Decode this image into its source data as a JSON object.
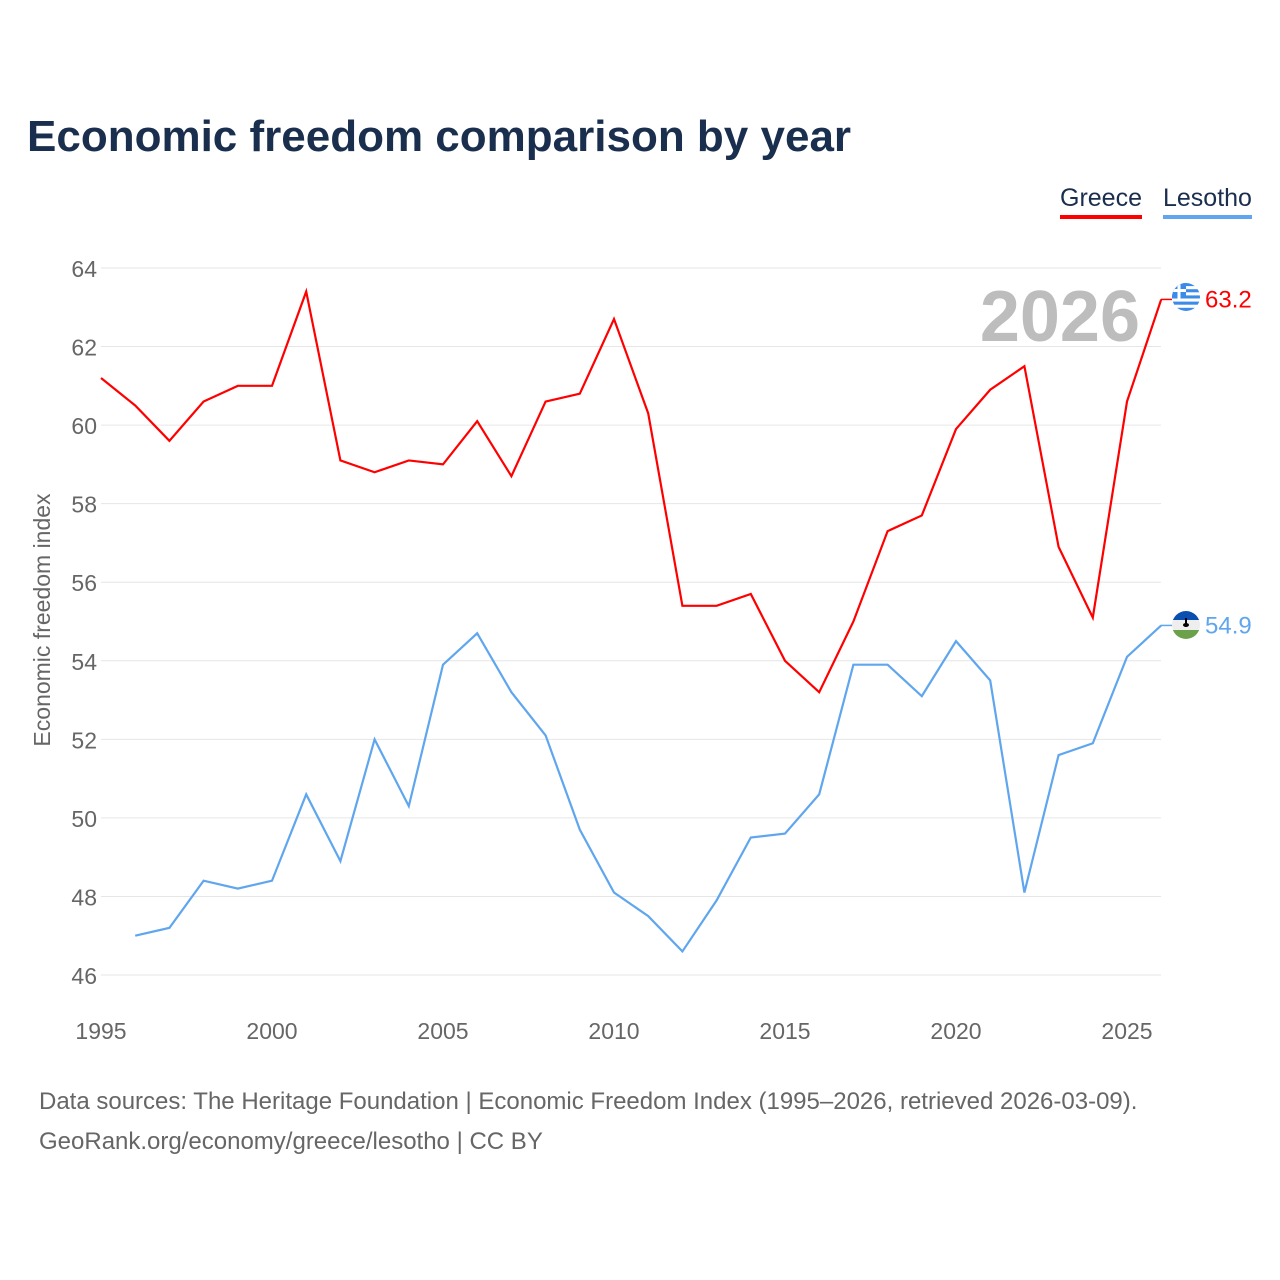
{
  "title": "Economic freedom comparison by year",
  "legend": [
    {
      "label": "Greece",
      "color": "#ff0000"
    },
    {
      "label": "Lesotho",
      "color": "#5fa6ee"
    }
  ],
  "year_label": "2026",
  "sources": [
    "Data sources: The Heritage Foundation | Economic Freedom Index (1995–2026, retrieved 2026-03-09).",
    "GeoRank.org/economy/greece/lesotho | CC BY"
  ],
  "chart_data": {
    "type": "line",
    "title": "Economic freedom comparison by year",
    "xlabel": "",
    "ylabel": "Economic freedom index",
    "xlim": [
      1995,
      2026
    ],
    "ylim": [
      46,
      64
    ],
    "xticks": [
      1995,
      2000,
      2005,
      2010,
      2015,
      2020,
      2025
    ],
    "yticks": [
      46,
      48,
      50,
      52,
      54,
      56,
      58,
      60,
      62,
      64
    ],
    "grid": true,
    "legend_position": "top-right",
    "series": [
      {
        "name": "Greece",
        "color": "#ff0000",
        "end_label": "63.2",
        "x": [
          1995,
          1996,
          1997,
          1998,
          1999,
          2000,
          2001,
          2002,
          2003,
          2004,
          2005,
          2006,
          2007,
          2008,
          2009,
          2010,
          2011,
          2012,
          2013,
          2014,
          2015,
          2016,
          2017,
          2018,
          2019,
          2020,
          2021,
          2022,
          2023,
          2024,
          2025,
          2026
        ],
        "values": [
          61.2,
          60.5,
          59.6,
          60.6,
          61.0,
          61.0,
          63.4,
          59.1,
          58.8,
          59.1,
          59.0,
          60.1,
          58.7,
          60.6,
          60.8,
          62.7,
          60.3,
          55.4,
          55.4,
          55.7,
          54.0,
          53.2,
          55.0,
          57.3,
          57.7,
          59.9,
          60.9,
          61.5,
          56.9,
          55.1,
          60.6,
          63.2
        ]
      },
      {
        "name": "Lesotho",
        "color": "#5fa6ee",
        "end_label": "54.9",
        "x": [
          1996,
          1997,
          1998,
          1999,
          2000,
          2001,
          2002,
          2003,
          2004,
          2005,
          2006,
          2007,
          2008,
          2009,
          2010,
          2011,
          2012,
          2013,
          2014,
          2015,
          2016,
          2017,
          2018,
          2019,
          2020,
          2021,
          2022,
          2023,
          2024,
          2025,
          2026
        ],
        "values": [
          47.0,
          47.2,
          48.4,
          48.2,
          48.4,
          50.6,
          48.9,
          52.0,
          50.3,
          53.9,
          54.7,
          53.2,
          52.1,
          49.7,
          48.1,
          47.5,
          46.6,
          47.9,
          49.5,
          49.6,
          50.6,
          53.9,
          53.9,
          53.1,
          54.5,
          53.5,
          48.1,
          51.6,
          51.9,
          54.1,
          54.9
        ]
      }
    ]
  }
}
